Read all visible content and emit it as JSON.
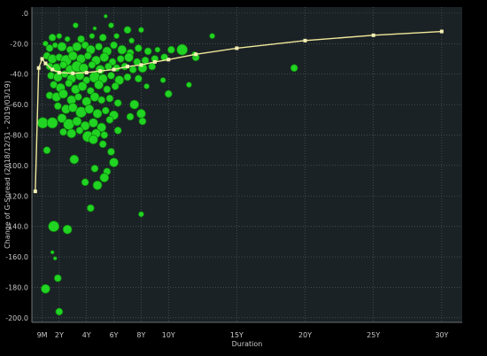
{
  "chart_data": {
    "type": "scatter",
    "xlabel": "Duration",
    "ylabel": "Change of G-Spread (2018/12/31 - 2019/03/19)",
    "x_ticks": [
      {
        "v": 0.75,
        "label": "9M"
      },
      {
        "v": 2,
        "label": "2Y"
      },
      {
        "v": 4,
        "label": "4Y"
      },
      {
        "v": 6,
        "label": "6Y"
      },
      {
        "v": 8,
        "label": "8Y"
      },
      {
        "v": 10,
        "label": "10Y"
      },
      {
        "v": 15,
        "label": "15Y"
      },
      {
        "v": 20,
        "label": "20Y"
      },
      {
        "v": 25,
        "label": "25Y"
      },
      {
        "v": 30,
        "label": "30Y"
      }
    ],
    "y_ticks": [
      {
        "v": 0,
        "label": ".0"
      },
      {
        "v": -20,
        "label": "-20.0"
      },
      {
        "v": -40,
        "label": "-40.0"
      },
      {
        "v": -60,
        "label": "-60.0"
      },
      {
        "v": -80,
        "label": "-80.0"
      },
      {
        "v": -100,
        "label": "-100.0"
      },
      {
        "v": -120,
        "label": "-120.0"
      },
      {
        "v": -140,
        "label": "-140.0"
      },
      {
        "v": -160,
        "label": "-160.0"
      },
      {
        "v": -180,
        "label": "-180.0"
      },
      {
        "v": -200,
        "label": "-200.0"
      }
    ],
    "xlim": [
      0,
      31.5
    ],
    "ylim": [
      -203,
      4
    ],
    "grid": true,
    "colors": {
      "background": "#1b2226",
      "gridline": "#5a6268",
      "bubble": "#22dd22",
      "bubble_edge": "#0d7a0d",
      "curve": "#f0e89a",
      "curve_marker": "#f5f0b5"
    },
    "curve": {
      "x": [
        0.25,
        0.5,
        0.75,
        1,
        1.5,
        2,
        3,
        4,
        5,
        6,
        7,
        8,
        9,
        10,
        12,
        15,
        20,
        25,
        30
      ],
      "y": [
        -117,
        -36,
        -30,
        -33,
        -37,
        -39,
        -39.5,
        -39,
        -38,
        -37,
        -35,
        -34,
        -32,
        -30.5,
        -27,
        -23,
        -18,
        -14.5,
        -12
      ]
    },
    "bubbles": [
      {
        "x": 5.4,
        "y": -2,
        "s": 2
      },
      {
        "x": 3.2,
        "y": -8,
        "s": 3
      },
      {
        "x": 4.6,
        "y": -10,
        "s": 2
      },
      {
        "x": 5.8,
        "y": -8,
        "s": 3
      },
      {
        "x": 7.0,
        "y": -11,
        "s": 4
      },
      {
        "x": 8.0,
        "y": -11,
        "s": 3
      },
      {
        "x": 1.5,
        "y": -16,
        "s": 4
      },
      {
        "x": 2.0,
        "y": -15,
        "s": 3
      },
      {
        "x": 2.6,
        "y": -17,
        "s": 3
      },
      {
        "x": 3.6,
        "y": -17,
        "s": 4
      },
      {
        "x": 4.4,
        "y": -15,
        "s": 3
      },
      {
        "x": 5.2,
        "y": -16,
        "s": 4
      },
      {
        "x": 6.2,
        "y": -15,
        "s": 3
      },
      {
        "x": 7.3,
        "y": -18,
        "s": 3
      },
      {
        "x": 13.2,
        "y": -15,
        "s": 3
      },
      {
        "x": 1.0,
        "y": -20,
        "s": 3
      },
      {
        "x": 1.3,
        "y": -23,
        "s": 4
      },
      {
        "x": 1.7,
        "y": -21,
        "s": 3
      },
      {
        "x": 2.2,
        "y": -22,
        "s": 5
      },
      {
        "x": 2.8,
        "y": -24,
        "s": 4
      },
      {
        "x": 3.3,
        "y": -22,
        "s": 5
      },
      {
        "x": 3.9,
        "y": -21,
        "s": 4
      },
      {
        "x": 4.3,
        "y": -24,
        "s": 5
      },
      {
        "x": 4.9,
        "y": -22,
        "s": 4
      },
      {
        "x": 5.5,
        "y": -25,
        "s": 5
      },
      {
        "x": 6.0,
        "y": -21,
        "s": 4
      },
      {
        "x": 6.6,
        "y": -24,
        "s": 5
      },
      {
        "x": 7.2,
        "y": -26,
        "s": 4
      },
      {
        "x": 7.8,
        "y": -23,
        "s": 4
      },
      {
        "x": 8.5,
        "y": -25,
        "s": 4
      },
      {
        "x": 9.2,
        "y": -24,
        "s": 3
      },
      {
        "x": 10.2,
        "y": -24,
        "s": 4
      },
      {
        "x": 11.0,
        "y": -24,
        "s": 6
      },
      {
        "x": 12.0,
        "y": -29,
        "s": 4
      },
      {
        "x": 9.7,
        "y": -29,
        "s": 4
      },
      {
        "x": 1.1,
        "y": -28,
        "s": 4
      },
      {
        "x": 1.5,
        "y": -30,
        "s": 5
      },
      {
        "x": 2.0,
        "y": -29,
        "s": 4
      },
      {
        "x": 2.5,
        "y": -31,
        "s": 6
      },
      {
        "x": 3.0,
        "y": -28,
        "s": 5
      },
      {
        "x": 3.6,
        "y": -30,
        "s": 5
      },
      {
        "x": 4.1,
        "y": -28,
        "s": 4
      },
      {
        "x": 4.7,
        "y": -31,
        "s": 5
      },
      {
        "x": 5.3,
        "y": -29,
        "s": 5
      },
      {
        "x": 5.9,
        "y": -32,
        "s": 4
      },
      {
        "x": 6.5,
        "y": -30,
        "s": 4
      },
      {
        "x": 7.1,
        "y": -29,
        "s": 5
      },
      {
        "x": 7.7,
        "y": -32,
        "s": 4
      },
      {
        "x": 8.3,
        "y": -31,
        "s": 4
      },
      {
        "x": 9.0,
        "y": -30,
        "s": 4
      },
      {
        "x": 1.3,
        "y": -35,
        "s": 4
      },
      {
        "x": 1.8,
        "y": -36,
        "s": 5
      },
      {
        "x": 2.3,
        "y": -34,
        "s": 4
      },
      {
        "x": 2.8,
        "y": -37,
        "s": 5
      },
      {
        "x": 3.3,
        "y": -35,
        "s": 6
      },
      {
        "x": 3.8,
        "y": -36,
        "s": 5
      },
      {
        "x": 4.4,
        "y": -34,
        "s": 4
      },
      {
        "x": 5.0,
        "y": -37,
        "s": 5
      },
      {
        "x": 5.6,
        "y": -35,
        "s": 4
      },
      {
        "x": 6.2,
        "y": -36,
        "s": 4
      },
      {
        "x": 6.8,
        "y": -35,
        "s": 4
      },
      {
        "x": 7.4,
        "y": -37,
        "s": 4
      },
      {
        "x": 8.1,
        "y": -36,
        "s": 5
      },
      {
        "x": 8.8,
        "y": -35,
        "s": 4
      },
      {
        "x": 19.2,
        "y": -36,
        "s": 4
      },
      {
        "x": 1.4,
        "y": -41,
        "s": 4
      },
      {
        "x": 1.9,
        "y": -42,
        "s": 5
      },
      {
        "x": 2.4,
        "y": -40,
        "s": 4
      },
      {
        "x": 2.9,
        "y": -43,
        "s": 5
      },
      {
        "x": 3.5,
        "y": -41,
        "s": 5
      },
      {
        "x": 4.0,
        "y": -44,
        "s": 4
      },
      {
        "x": 4.6,
        "y": -42,
        "s": 6
      },
      {
        "x": 5.2,
        "y": -43,
        "s": 5
      },
      {
        "x": 5.8,
        "y": -41,
        "s": 4
      },
      {
        "x": 6.4,
        "y": -44,
        "s": 5
      },
      {
        "x": 7.0,
        "y": -42,
        "s": 4
      },
      {
        "x": 7.8,
        "y": -43,
        "s": 4
      },
      {
        "x": 8.4,
        "y": -48,
        "s": 3
      },
      {
        "x": 9.6,
        "y": -44,
        "s": 3
      },
      {
        "x": 11.5,
        "y": -47,
        "s": 3
      },
      {
        "x": 1.6,
        "y": -47,
        "s": 4
      },
      {
        "x": 2.1,
        "y": -49,
        "s": 5
      },
      {
        "x": 2.7,
        "y": -46,
        "s": 4
      },
      {
        "x": 3.2,
        "y": -50,
        "s": 5
      },
      {
        "x": 3.7,
        "y": -48,
        "s": 5
      },
      {
        "x": 4.3,
        "y": -51,
        "s": 4
      },
      {
        "x": 4.9,
        "y": -47,
        "s": 5
      },
      {
        "x": 5.5,
        "y": -50,
        "s": 4
      },
      {
        "x": 6.1,
        "y": -48,
        "s": 4
      },
      {
        "x": 10.0,
        "y": -53,
        "s": 4
      },
      {
        "x": 1.3,
        "y": -54,
        "s": 4
      },
      {
        "x": 1.8,
        "y": -55,
        "s": 5
      },
      {
        "x": 2.3,
        "y": -53,
        "s": 5
      },
      {
        "x": 2.9,
        "y": -57,
        "s": 5
      },
      {
        "x": 3.4,
        "y": -55,
        "s": 4
      },
      {
        "x": 4.0,
        "y": -58,
        "s": 5
      },
      {
        "x": 4.6,
        "y": -55,
        "s": 5
      },
      {
        "x": 5.1,
        "y": -57,
        "s": 4
      },
      {
        "x": 5.7,
        "y": -56,
        "s": 4
      },
      {
        "x": 6.3,
        "y": -59,
        "s": 4
      },
      {
        "x": 7.5,
        "y": -60,
        "s": 5
      },
      {
        "x": 8.0,
        "y": -66,
        "s": 5
      },
      {
        "x": 1.9,
        "y": -61,
        "s": 4
      },
      {
        "x": 2.5,
        "y": -63,
        "s": 5
      },
      {
        "x": 3.0,
        "y": -62,
        "s": 5
      },
      {
        "x": 3.6,
        "y": -65,
        "s": 6
      },
      {
        "x": 4.2,
        "y": -63,
        "s": 5
      },
      {
        "x": 4.8,
        "y": -66,
        "s": 5
      },
      {
        "x": 5.4,
        "y": -64,
        "s": 4
      },
      {
        "x": 6.0,
        "y": -67,
        "s": 5
      },
      {
        "x": 7.2,
        "y": -68,
        "s": 4
      },
      {
        "x": 8.1,
        "y": -71,
        "s": 4
      },
      {
        "x": 0.8,
        "y": -72,
        "s": 6
      },
      {
        "x": 1.5,
        "y": -72,
        "s": 6
      },
      {
        "x": 2.2,
        "y": -69,
        "s": 5
      },
      {
        "x": 2.7,
        "y": -73,
        "s": 6
      },
      {
        "x": 3.3,
        "y": -71,
        "s": 5
      },
      {
        "x": 3.9,
        "y": -74,
        "s": 5
      },
      {
        "x": 4.5,
        "y": -72,
        "s": 5
      },
      {
        "x": 5.1,
        "y": -75,
        "s": 5
      },
      {
        "x": 5.7,
        "y": -70,
        "s": 4
      },
      {
        "x": 6.3,
        "y": -77,
        "s": 4
      },
      {
        "x": 2.3,
        "y": -78,
        "s": 4
      },
      {
        "x": 2.9,
        "y": -79,
        "s": 5
      },
      {
        "x": 3.5,
        "y": -77,
        "s": 4
      },
      {
        "x": 4.1,
        "y": -81,
        "s": 6
      },
      {
        "x": 4.7,
        "y": -79,
        "s": 5
      },
      {
        "x": 5.3,
        "y": -80,
        "s": 4
      },
      {
        "x": 4.5,
        "y": -83,
        "s": 5
      },
      {
        "x": 5.2,
        "y": -86,
        "s": 4
      },
      {
        "x": 1.1,
        "y": -90,
        "s": 4
      },
      {
        "x": 5.8,
        "y": -91,
        "s": 4
      },
      {
        "x": 3.1,
        "y": -96,
        "s": 5
      },
      {
        "x": 6.0,
        "y": -98,
        "s": 5
      },
      {
        "x": 4.6,
        "y": -102,
        "s": 4
      },
      {
        "x": 5.5,
        "y": -104,
        "s": 4
      },
      {
        "x": 5.3,
        "y": -108,
        "s": 5
      },
      {
        "x": 3.9,
        "y": -111,
        "s": 4
      },
      {
        "x": 4.8,
        "y": -113,
        "s": 5
      },
      {
        "x": 4.3,
        "y": -128,
        "s": 4
      },
      {
        "x": 1.6,
        "y": -140,
        "s": 6
      },
      {
        "x": 2.6,
        "y": -142,
        "s": 5
      },
      {
        "x": 1.5,
        "y": -157,
        "s": 2
      },
      {
        "x": 1.7,
        "y": -161,
        "s": 2
      },
      {
        "x": 1.9,
        "y": -174,
        "s": 4
      },
      {
        "x": 1.0,
        "y": -181,
        "s": 5
      },
      {
        "x": 2.0,
        "y": -196,
        "s": 4
      },
      {
        "x": 8.0,
        "y": -132,
        "s": 3
      },
      {
        "x": 11.9,
        "y": -27,
        "s": 3
      }
    ]
  }
}
